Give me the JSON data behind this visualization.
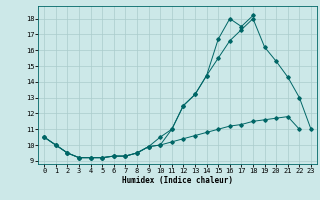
{
  "title": "",
  "xlabel": "Humidex (Indice chaleur)",
  "ylabel": "",
  "background_color": "#cce8e8",
  "line_color": "#006666",
  "grid_color": "#aacccc",
  "xlim": [
    -0.5,
    23.5
  ],
  "ylim": [
    8.8,
    18.8
  ],
  "yticks": [
    9,
    10,
    11,
    12,
    13,
    14,
    15,
    16,
    17,
    18
  ],
  "xticks": [
    0,
    1,
    2,
    3,
    4,
    5,
    6,
    7,
    8,
    9,
    10,
    11,
    12,
    13,
    14,
    15,
    16,
    17,
    18,
    19,
    20,
    21,
    22,
    23
  ],
  "series": [
    {
      "x": [
        0,
        1,
        2,
        3,
        4,
        5,
        6,
        7,
        8,
        9,
        10,
        11,
        12,
        13,
        14,
        15,
        16,
        17,
        18,
        19,
        20,
        21,
        22,
        23
      ],
      "y": [
        10.5,
        10.0,
        9.5,
        9.2,
        9.2,
        9.2,
        9.3,
        9.3,
        9.5,
        9.9,
        10.5,
        11.0,
        12.5,
        13.2,
        14.4,
        15.5,
        16.6,
        17.3,
        18.0,
        16.2,
        15.3,
        14.3,
        13.0,
        11.0
      ]
    },
    {
      "x": [
        0,
        1,
        2,
        3,
        4,
        5,
        6,
        7,
        8,
        9,
        10,
        11,
        12,
        13,
        14,
        15,
        16,
        17,
        18
      ],
      "y": [
        10.5,
        10.0,
        9.5,
        9.2,
        9.2,
        9.2,
        9.3,
        9.3,
        9.5,
        9.9,
        10.0,
        11.0,
        12.5,
        13.2,
        14.4,
        16.7,
        18.0,
        17.5,
        18.2
      ]
    },
    {
      "x": [
        0,
        1,
        2,
        3,
        4,
        5,
        6,
        7,
        8,
        9,
        10,
        11,
        12,
        13,
        14,
        15,
        16,
        17,
        18,
        19,
        20,
        21,
        22
      ],
      "y": [
        10.5,
        10.0,
        9.5,
        9.2,
        9.2,
        9.2,
        9.3,
        9.3,
        9.5,
        9.9,
        10.0,
        10.2,
        10.4,
        10.6,
        10.8,
        11.0,
        11.2,
        11.3,
        11.5,
        11.6,
        11.7,
        11.8,
        11.0
      ]
    }
  ]
}
